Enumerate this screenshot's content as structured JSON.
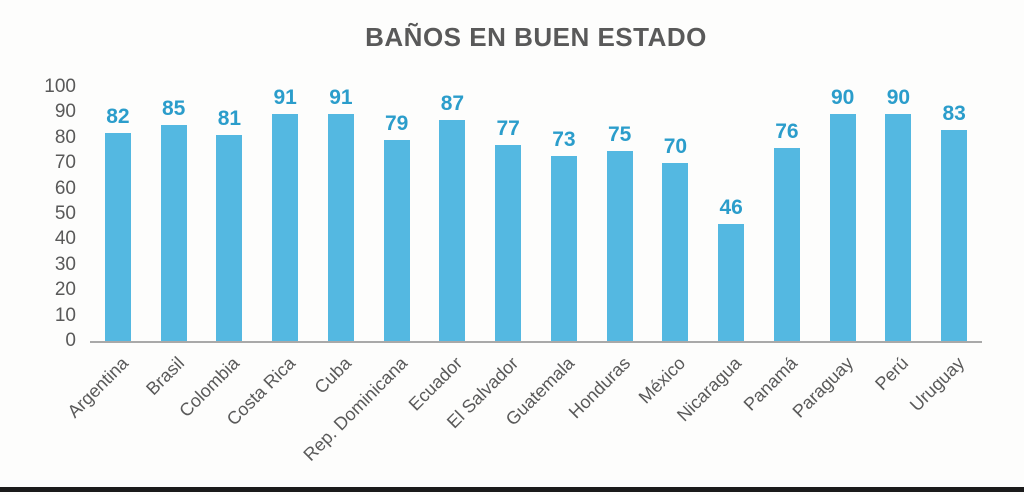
{
  "chart_data": {
    "type": "bar",
    "title": "BAÑOS EN BUEN ESTADO",
    "categories": [
      "Argentina",
      "Brasil",
      "Colombia",
      "Costa Rica",
      "Cuba",
      "Rep. Dominicana",
      "Ecuador",
      "El Salvador",
      "Guatemala",
      "Honduras",
      "México",
      "Nicaragua",
      "Panamá",
      "Paraguay",
      "Perú",
      "Uruguay"
    ],
    "values": [
      82,
      85,
      81,
      91,
      91,
      79,
      87,
      77,
      73,
      75,
      70,
      46,
      76,
      90,
      90,
      83
    ],
    "xlabel": "",
    "ylabel": "",
    "ylim": [
      0,
      100
    ],
    "yticks": [
      0,
      10,
      20,
      30,
      40,
      50,
      60,
      70,
      80,
      90,
      100
    ],
    "grid": false,
    "legend": "none",
    "value_labels_shown": true,
    "x_tick_rotation_deg": 45,
    "colors": {
      "bar": "#54B8E1",
      "value_label": "#2B9DCB",
      "axis_text": "#595959",
      "title_text": "#595959",
      "axis_line": "#A9A9A9",
      "background": "#FDFDFC",
      "bottom_bar": "#1B1B1B"
    }
  }
}
